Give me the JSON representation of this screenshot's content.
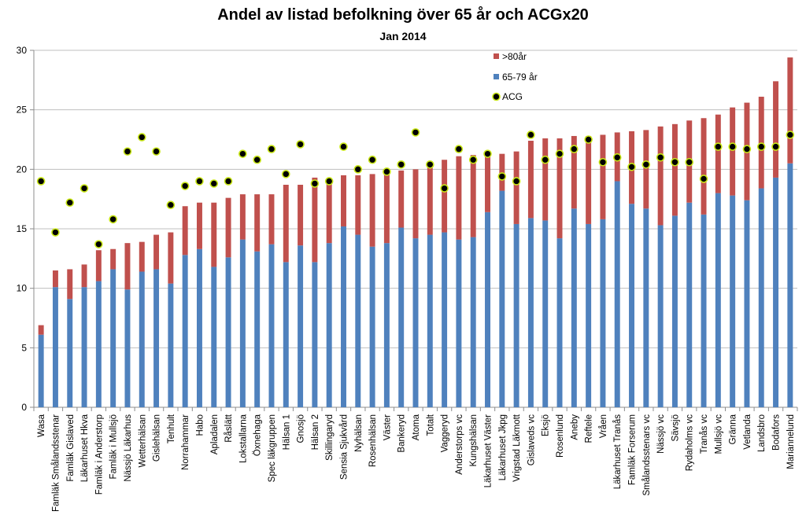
{
  "chart_data": {
    "type": "bar",
    "stacked": true,
    "title": "Andel av listad befolkning över 65 år och ACGx20",
    "subtitle": "Jan 2014",
    "xlabel": "",
    "ylabel": "",
    "ylim": [
      0,
      30
    ],
    "yticks": [
      0,
      5,
      10,
      15,
      20,
      25,
      30
    ],
    "grid": true,
    "legend_position": "top-right",
    "categories": [
      "Wasa",
      "Famläk Smålandsstenar",
      "Famläk Gislaved",
      "Läkarhuset Hkva",
      "Famläk i Anderstorp",
      "Famläk i Mullsjö",
      "Nässjö Läkarhus",
      "Wetterhälsan",
      "Gislehälsan",
      "Tenhult",
      "Norrahammar",
      "Habo",
      "Apladalen",
      "Råslätt",
      "Lokstallarna",
      "Öxnehaga",
      "Spec läkgruppen",
      "Hälsan 1",
      "Gnosjö",
      "Hälsan 2",
      "Skillingaryd",
      "Sensia Sjukvård",
      "Nyhälsan",
      "Rosenhälsan",
      "Väster",
      "Bankeryd",
      "Atoma",
      "Totalt",
      "Vaggeryd",
      "Anderstorps vc",
      "Kungshälsan",
      "Läkarhuset Väster",
      "Läkarhuset Jkpg",
      "Vrigstad Läkmott",
      "Gislaveds vc",
      "Eksjö",
      "Rosenlund",
      "Aneby",
      "Reftele",
      "Vråen",
      "Läkarhuset Tranås",
      "Famläk Forserum",
      "Smålandsstenars vc",
      "Nässjö vc",
      "Sävsjö",
      "Rydaholms vc",
      "Tranås vc",
      "Mullsjö vc",
      "Gränna",
      "Vetlanda",
      "Landsbro",
      "Bodafors",
      "Mariannelund"
    ],
    "series": [
      {
        "name": "65-79 år",
        "color": "#4f81bd",
        "values": [
          6.1,
          10.1,
          9.1,
          10.1,
          10.6,
          11.6,
          9.9,
          11.4,
          11.6,
          10.4,
          12.8,
          13.3,
          11.8,
          12.6,
          14.1,
          13.1,
          13.7,
          12.2,
          13.6,
          12.2,
          13.8,
          15.2,
          14.5,
          13.5,
          13.8,
          15.1,
          14.2,
          14.5,
          14.7,
          14.1,
          14.3,
          16.4,
          18.2,
          15.4,
          15.9,
          15.7,
          14.2,
          16.7,
          15.4,
          15.8,
          19.0,
          17.1,
          16.7,
          15.3,
          16.1,
          17.2,
          16.2,
          18.0,
          17.8,
          17.4,
          18.4,
          19.3,
          20.5
        ]
      },
      {
        "name": ">80år",
        "color": "#c0504d",
        "values": [
          0.8,
          1.4,
          2.5,
          1.9,
          2.6,
          1.7,
          3.9,
          2.5,
          2.9,
          4.3,
          4.1,
          3.9,
          5.4,
          5.0,
          3.8,
          4.8,
          4.2,
          6.5,
          5.1,
          7.1,
          5.4,
          4.3,
          5.0,
          6.1,
          6.0,
          4.8,
          5.8,
          5.9,
          6.1,
          7.0,
          6.9,
          4.9,
          3.1,
          6.1,
          6.5,
          6.9,
          8.4,
          6.1,
          7.4,
          7.1,
          4.1,
          6.1,
          6.6,
          8.3,
          7.7,
          6.9,
          8.1,
          6.6,
          7.4,
          8.2,
          7.7,
          8.1,
          8.9
        ]
      }
    ],
    "markers": {
      "name": "ACG",
      "fill": "#000000",
      "stroke": "#c8e616",
      "values": [
        19.0,
        14.7,
        17.2,
        18.4,
        13.7,
        15.8,
        21.5,
        22.7,
        21.5,
        17.0,
        18.6,
        19.0,
        18.8,
        19.0,
        21.3,
        20.8,
        21.7,
        19.6,
        22.1,
        18.8,
        19.0,
        21.9,
        20.0,
        20.8,
        19.8,
        20.4,
        23.1,
        20.4,
        18.4,
        21.7,
        20.8,
        21.3,
        19.4,
        19.0,
        22.9,
        20.8,
        21.3,
        21.7,
        22.5,
        20.6,
        21.0,
        20.2,
        20.4,
        21.0,
        20.6,
        20.6,
        19.2,
        21.9,
        21.9,
        21.7,
        21.9,
        21.9,
        22.9
      ]
    }
  }
}
